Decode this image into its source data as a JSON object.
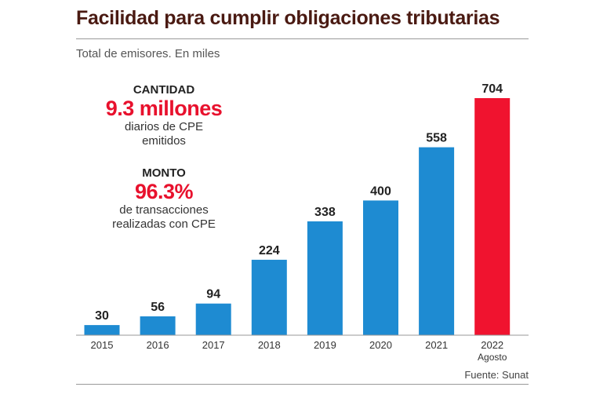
{
  "header": {
    "title": "Facilidad para cumplir obligaciones tributarias",
    "subtitle": "Total de emisores. En miles"
  },
  "stats": [
    {
      "label": "CANTIDAD",
      "value": "9.3 millones",
      "desc_line1": "diarios de CPE",
      "desc_line2": "emitidos"
    },
    {
      "label": "MONTO",
      "value": "96.3%",
      "desc_line1": "de transacciones",
      "desc_line2": "realizadas con CPE"
    }
  ],
  "colors": {
    "bar": "#1e8bd2",
    "highlight": "#f0132f",
    "axis": "#999999",
    "accent_text": "#e8112d"
  },
  "chart_data": {
    "type": "bar",
    "title": "Facilidad para cumplir obligaciones tributarias",
    "subtitle": "Total de emisores. En miles",
    "categories": [
      "2015",
      "2016",
      "2017",
      "2018",
      "2019",
      "2020",
      "2021",
      "2022"
    ],
    "category_sublabels": [
      "",
      "",
      "",
      "",
      "",
      "",
      "",
      "Agosto"
    ],
    "values": [
      30,
      56,
      94,
      224,
      338,
      400,
      558,
      704
    ],
    "highlight_index": 7,
    "ylim": [
      0,
      704
    ],
    "grid": false,
    "legend": "none",
    "xlabel": "",
    "ylabel": ""
  },
  "footer": {
    "source": "Fuente: Sunat"
  }
}
